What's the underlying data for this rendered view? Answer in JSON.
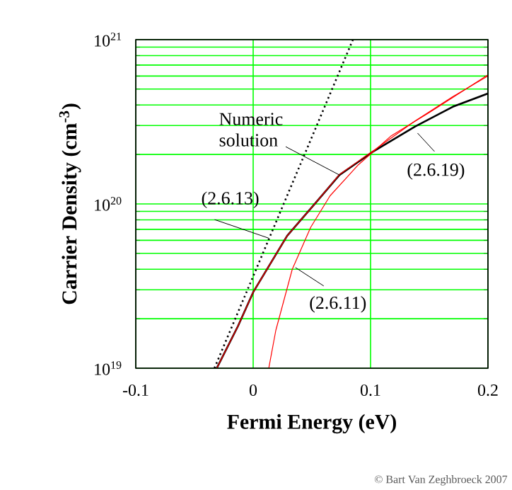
{
  "chart_data": {
    "type": "line",
    "xlabel": "Fermi Energy (eV)",
    "ylabel": "Carrier Density (cm$^{-3}$)",
    "xlim": [
      -0.1,
      0.2
    ],
    "xticks": [
      -0.1,
      0,
      0.1,
      0.2
    ],
    "ylim": [
      1e+19,
      1e+21
    ],
    "yticks": [
      {
        "value": 1e+19,
        "label": "10$^{19}$"
      },
      {
        "value": 1e+20,
        "label": "10$^{20}$"
      },
      {
        "value": 1e+21,
        "label": "10$^{21}$"
      }
    ],
    "log": "y",
    "grid": true,
    "marker": "none",
    "series": [
      {
        "color": "#ff0000",
        "line_style": "solid",
        "x": [
          -0.031,
          -0.013,
          0.0,
          0.029,
          0.053,
          0.0735,
          0.1016,
          0.138,
          0.17,
          0.2
        ],
        "values": [
          1e+19,
          1.8e+19,
          2.9e+19,
          6.4e+19,
          1.01e+20,
          1.51e+20,
          2.09e+20,
          3.2e+20,
          4.5e+20,
          6e+20
        ]
      },
      {
        "color": "#ff0000",
        "line_style": "solid",
        "x": [
          0.0133,
          0.0193,
          0.0333,
          0.049,
          0.0655,
          0.0896,
          0.1177,
          0.15,
          0.2
        ],
        "values": [
          1e+19,
          1.7e+19,
          4e+19,
          7.2e+19,
          1.12e+20,
          1.73e+20,
          2.6e+20,
          3.6e+20,
          6.1e+20
        ]
      },
      {
        "color": "#000000",
        "line_style": "solid",
        "x": [
          -0.031,
          -0.013,
          0.0,
          0.029,
          0.053,
          0.0735,
          0.1016,
          0.138,
          0.17,
          0.2
        ],
        "values": [
          1e+19,
          1.8e+19,
          2.9e+19,
          6.4e+19,
          1.01e+20,
          1.5e+20,
          2.07e+20,
          2.96e+20,
          3.9e+20,
          4.7e+20
        ]
      },
      {
        "color": "#000000",
        "line_style": "dotted",
        "x": [
          -0.033,
          0.085
        ],
        "values": [
          1e+19,
          1e+21
        ]
      }
    ],
    "annotations": [
      {
        "text": "Numeric solution",
        "x": 0.0735,
        "y": 1.5e+20
      },
      {
        "text": "(2.6.13)",
        "x": 0.013,
        "y": 6.2e+19
      },
      {
        "text": "(2.6.11)",
        "x": 0.036,
        "y": 4.1e+19
      },
      {
        "text": "(2.6.19)",
        "x": 0.14,
        "y": 2.7e+20
      },
      "© Bart Van Zeghbroeck 2007"
    ]
  }
}
